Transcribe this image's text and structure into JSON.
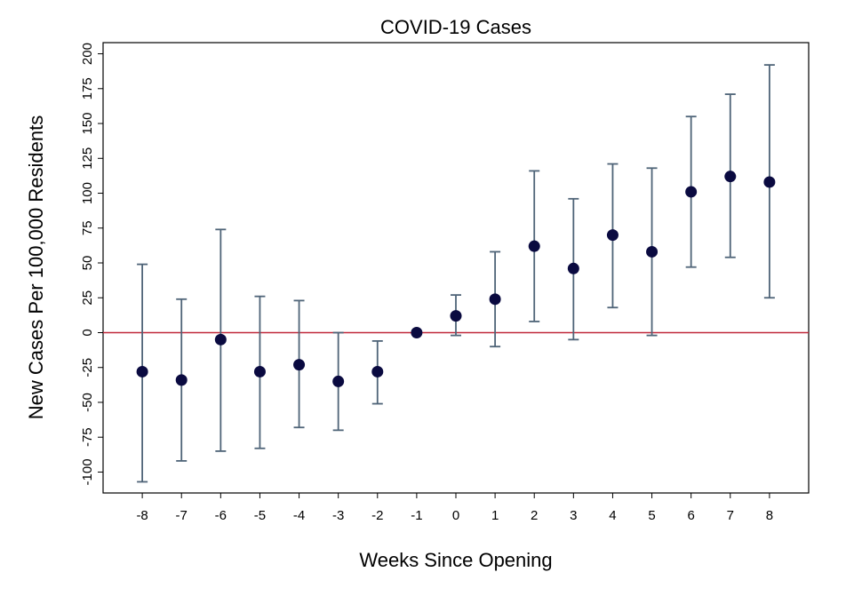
{
  "chart_data": {
    "type": "scatter",
    "title": "COVID-19 Cases",
    "xlabel": "Weeks Since Opening",
    "ylabel": "New Cases Per 100,000 Residents",
    "xlim": [
      -9,
      9
    ],
    "ylim": [
      -115,
      208
    ],
    "x_ticks": [
      -8,
      -7,
      -6,
      -5,
      -4,
      -3,
      -2,
      -1,
      0,
      1,
      2,
      3,
      4,
      5,
      6,
      7,
      8
    ],
    "y_ticks": [
      -100,
      -75,
      -50,
      -25,
      0,
      25,
      50,
      75,
      100,
      125,
      150,
      175,
      200
    ],
    "grid": false,
    "reference_line": {
      "y": 0,
      "color": "#c0283a"
    },
    "point_color": "#0a0a40",
    "errorbar_color": "#4f6478",
    "series": [
      {
        "x": [
          -8,
          -7,
          -6,
          -5,
          -4,
          -3,
          -2,
          -1,
          0,
          1,
          2,
          3,
          4,
          5,
          6,
          7,
          8
        ],
        "y": [
          -28,
          -34,
          -5,
          -28,
          -23,
          -35,
          -28,
          0,
          12,
          24,
          62,
          46,
          70,
          58,
          101,
          112,
          108
        ],
        "lower": [
          -107,
          -92,
          -85,
          -83,
          -68,
          -70,
          -51,
          0,
          -2,
          -10,
          8,
          -5,
          18,
          -2,
          47,
          54,
          25
        ],
        "upper": [
          49,
          24,
          74,
          26,
          23,
          0,
          -6,
          0,
          27,
          58,
          116,
          96,
          121,
          118,
          155,
          171,
          192
        ]
      }
    ]
  }
}
